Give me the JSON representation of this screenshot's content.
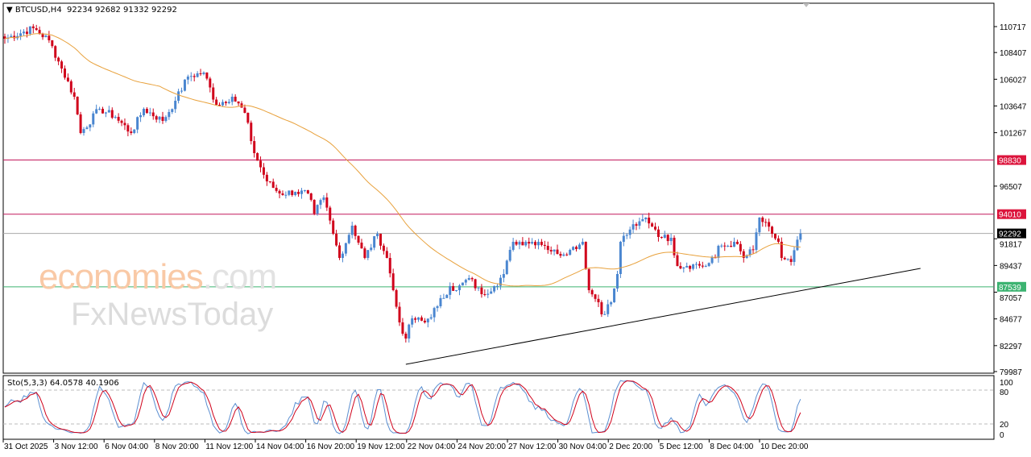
{
  "header": {
    "symbol": "BTCUSD,H4",
    "ohlc": "92234 92682 91332 92292"
  },
  "watermark": {
    "line1_a": "economies",
    "line1_b": ".com",
    "line2": "FxNewsToday"
  },
  "indicator": {
    "label": "Sto(5,3,3) 64.0578 40.1906",
    "k": 64.0578,
    "d": 40.1906,
    "levels": [
      "100",
      "80",
      "20",
      "0"
    ]
  },
  "colors": {
    "bull": "#4a86d0",
    "bear": "#d0021b",
    "ma": "#e8a13c",
    "resistance": "#c2185b",
    "support": "#3cb371",
    "current": "#000000",
    "stoch_k": "#5b8fd1",
    "stoch_d": "#d0021b"
  },
  "chart_data": {
    "type": "candlestick",
    "symbol": "BTCUSD",
    "timeframe": "H4",
    "ylim": [
      79987,
      111400
    ],
    "y_ticks": [
      "110717",
      "108407",
      "106027",
      "103647",
      "101267",
      "96507",
      "91817",
      "89437",
      "87057",
      "84677",
      "82297",
      "79987"
    ],
    "x_ticks": [
      "31 Oct 2025",
      "3 Nov 12:00",
      "6 Nov 04:00",
      "8 Nov 20:00",
      "11 Nov 12:00",
      "14 Nov 04:00",
      "16 Nov 20:00",
      "19 Nov 12:00",
      "22 Nov 04:00",
      "24 Nov 20:00",
      "27 Nov 12:00",
      "30 Nov 04:00",
      "2 Dec 20:00",
      "5 Dec 12:00",
      "8 Dec 04:00",
      "10 Dec 20:00"
    ],
    "price_path": [
      [
        0,
        109640
      ],
      [
        9,
        110573
      ],
      [
        14,
        109496
      ],
      [
        18,
        106983
      ],
      [
        22,
        104470
      ],
      [
        24,
        101239
      ],
      [
        30,
        103393
      ],
      [
        35,
        102675
      ],
      [
        40,
        101239
      ],
      [
        44,
        103393
      ],
      [
        50,
        102316
      ],
      [
        54,
        104111
      ],
      [
        58,
        106265
      ],
      [
        63,
        106624
      ],
      [
        67,
        103752
      ],
      [
        72,
        104470
      ],
      [
        76,
        103034
      ],
      [
        79,
        99444
      ],
      [
        83,
        96931
      ],
      [
        87,
        95854
      ],
      [
        92,
        95998
      ],
      [
        96,
        95854
      ],
      [
        98,
        94059
      ],
      [
        101,
        95495
      ],
      [
        104,
        92264
      ],
      [
        106,
        90111
      ],
      [
        110,
        92983
      ],
      [
        114,
        90111
      ],
      [
        118,
        92264
      ],
      [
        121,
        90111
      ],
      [
        123,
        87239
      ],
      [
        125,
        84367
      ],
      [
        127,
        82931
      ],
      [
        129,
        84726
      ],
      [
        133,
        84367
      ],
      [
        137,
        85803
      ],
      [
        141,
        87598
      ],
      [
        143,
        87239
      ],
      [
        147,
        88316
      ],
      [
        151,
        86880
      ],
      [
        155,
        87598
      ],
      [
        158,
        88675
      ],
      [
        161,
        91546
      ],
      [
        165,
        91546
      ],
      [
        169,
        91546
      ],
      [
        171,
        91188
      ],
      [
        175,
        90470
      ],
      [
        179,
        90829
      ],
      [
        183,
        91546
      ],
      [
        185,
        87239
      ],
      [
        188,
        86162
      ],
      [
        189,
        85085
      ],
      [
        192,
        86162
      ],
      [
        194,
        88675
      ],
      [
        195,
        91546
      ],
      [
        198,
        92640
      ],
      [
        200,
        92983
      ],
      [
        203,
        93701
      ],
      [
        206,
        92640
      ],
      [
        208,
        91906
      ],
      [
        211,
        91906
      ],
      [
        213,
        89393
      ],
      [
        216,
        89393
      ],
      [
        218,
        89536
      ],
      [
        222,
        89393
      ],
      [
        225,
        90111
      ],
      [
        226,
        91188
      ],
      [
        229,
        91188
      ],
      [
        231,
        91546
      ],
      [
        234,
        90111
      ],
      [
        237,
        90829
      ],
      [
        239,
        93701
      ],
      [
        243,
        92264
      ],
      [
        245,
        91546
      ],
      [
        246,
        90111
      ],
      [
        249,
        89752
      ],
      [
        252,
        92292
      ]
    ],
    "horizontal_lines": [
      {
        "price": 98830,
        "label": "98830",
        "role": "resistance"
      },
      {
        "price": 94010,
        "label": "94010",
        "role": "resistance"
      },
      {
        "price": 92292,
        "label": "92292",
        "role": "current"
      },
      {
        "price": 87539,
        "label": "87539",
        "role": "support"
      }
    ],
    "trendline": {
      "from": [
        127,
        80633
      ],
      "to": [
        290,
        89177
      ]
    },
    "moving_average": {
      "color": "orange"
    }
  }
}
